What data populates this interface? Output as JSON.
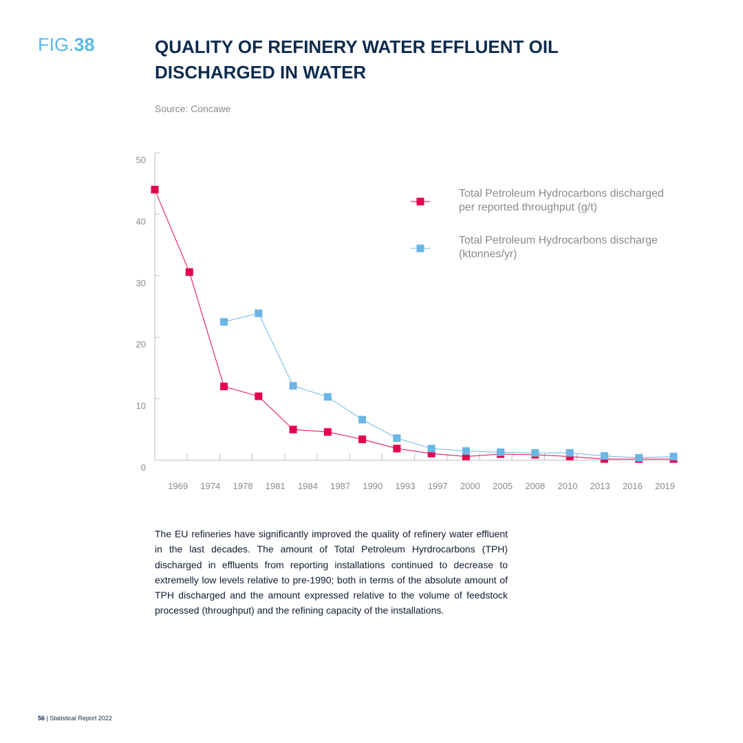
{
  "fig_label": {
    "prefix": "FIG.",
    "number": "38"
  },
  "title_lines": [
    "QUALITY OF REFINERY WATER EFFLUENT OIL",
    "DISCHARGED IN WATER"
  ],
  "source": "Source: Concawe",
  "chart_data": {
    "type": "line",
    "categories": [
      null,
      "1969",
      "1974",
      "1978",
      "1981",
      "1984",
      "1987",
      "1990",
      "1993",
      "1997",
      "2000",
      "2005",
      "2008",
      "2010",
      "2013",
      "2016",
      "2019"
    ],
    "series": [
      {
        "name": "Total Petroleum Hydrocarbons discharged per reported throughput (g/t)",
        "color": "#e5004f",
        "values": [
          44,
          30.6,
          12,
          10.4,
          5.0,
          4.6,
          3.4,
          1.9,
          1.1,
          0.6,
          1.0,
          0.9,
          0.6,
          0.2,
          0.2,
          0.2,
          null
        ]
      },
      {
        "name": "Total Petroleum Hydrocarbons discharge (ktonnes/yr)",
        "color": "#6bb6e5",
        "values": [
          null,
          null,
          22.5,
          23.9,
          12.1,
          10.3,
          6.6,
          3.6,
          1.9,
          1.5,
          1.3,
          1.2,
          1.2,
          0.7,
          0.4,
          0.6,
          null
        ]
      }
    ],
    "ylim": [
      0,
      50
    ],
    "yticks": [
      0,
      10,
      20,
      30,
      40,
      50
    ]
  },
  "body": "The EU refineries have significantly improved the quality of refinery water effluent in the last decades. The amount of Total Petroleum Hyrdrocarbons (TPH) discharged in effluents from reporting installations continued to decrease to extremelly low levels relative to pre-1990; both in terms of the absolute amount of TPH discharged and the amount expressed relative to the volume of feedstock processed (throughput) and the refining capacity of the installations.",
  "footer": {
    "page": "56",
    "text": "| Statistical Report 2022"
  }
}
